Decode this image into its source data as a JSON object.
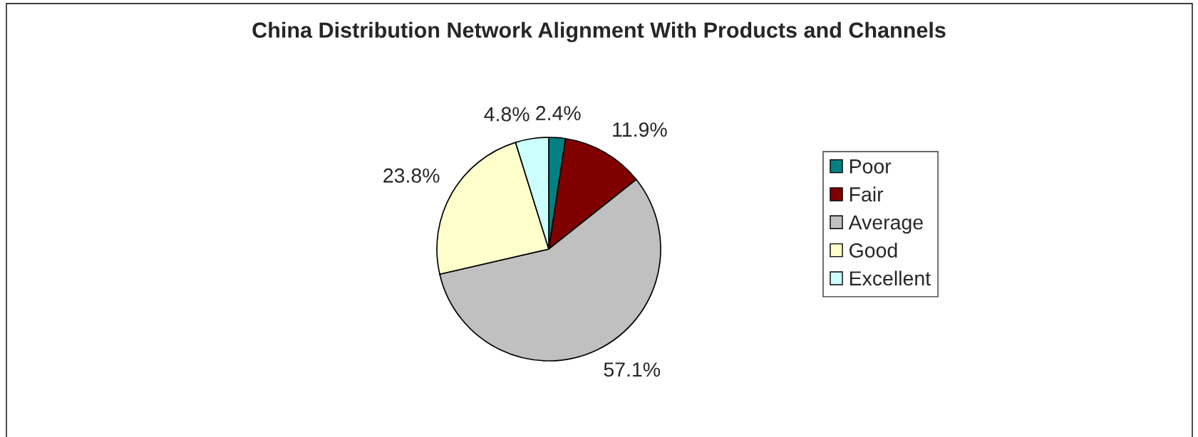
{
  "chart_data": {
    "type": "pie",
    "title": "China Distribution Network Alignment With Products and Channels",
    "categories": [
      "Poor",
      "Fair",
      "Average",
      "Good",
      "Excellent"
    ],
    "values": [
      2.4,
      11.9,
      57.1,
      23.8,
      4.8
    ],
    "value_labels": [
      "2.4%",
      "11.9%",
      "57.1%",
      "23.8%",
      "4.8%"
    ],
    "colors": [
      "#008080",
      "#800000",
      "#c0c0c0",
      "#ffffcc",
      "#ccffff"
    ],
    "legend": "right"
  }
}
